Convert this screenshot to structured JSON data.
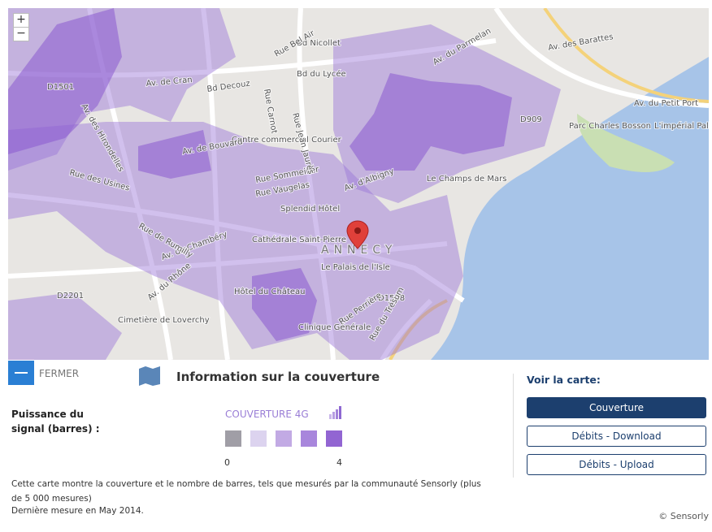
{
  "map": {
    "zoom_in": "+",
    "zoom_out": "−",
    "labels": [
      "Av. de Cran",
      "Bd Decouz",
      "Bd du Lycée",
      "Bd Nicollet",
      "Av. du Parmelan",
      "Av. des Barattes",
      "Av. du Petit Port",
      "Av. des Hirondelles",
      "Centre commercial Courier",
      "Rue Carnot",
      "Rue Sommeiller",
      "Rue Vaugelas",
      "Av. d'Albigny",
      "Le Champs de Mars",
      "Parc Charles Bosson",
      "L'impérial Palace",
      "Splendid Hôtel",
      "Cathédrale Saint-Pierre",
      "ANNECY",
      "Le Palais de l'Isle",
      "Hôtel du Château",
      "Clinique Générale",
      "Cimetière de Loverchy",
      "Av. du Rhône",
      "Av. de Chambéry",
      "Rue des Usines",
      "Rue de Rumilly",
      "D1501",
      "D909",
      "D1508",
      "D2201",
      "Rue Perrière",
      "Rue du Trésum",
      "Av. de Bouvard",
      "Rue Bel Air",
      "Rue Jean Jaurès"
    ]
  },
  "panel": {
    "close": "FERMER",
    "title": "Information sur la couverture",
    "signal_label": "Puissance du signal (barres) :",
    "coverage_type": "COUVERTURE 4G",
    "scale_min": "0",
    "scale_max": "4",
    "legend_colors": [
      "#a09ea6",
      "#dcd3ef",
      "#c2aae4",
      "#a886dc",
      "#9265d2"
    ],
    "description": "Cette carte montre la couverture et le nombre de barres, tels que mesurés par la communauté Sensorly (plus de 5 000 mesures)",
    "last_measure": "Dernière mesure en May 2014.",
    "view_heading": "Voir la carte:",
    "buttons": [
      "Couverture",
      "Débits - Download",
      "Débits - Upload"
    ],
    "copyright": "© Sensorly"
  }
}
